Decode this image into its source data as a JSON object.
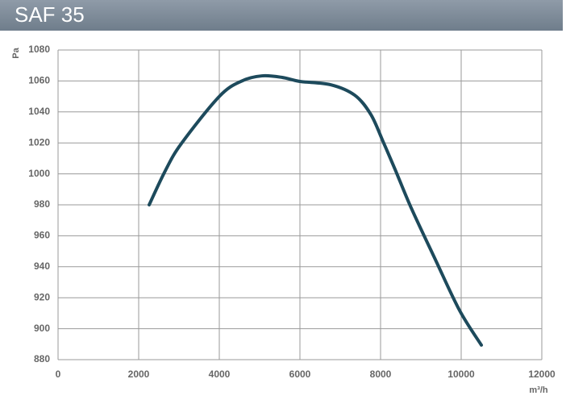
{
  "chart_data": {
    "type": "line",
    "title": "SAF 35",
    "y_label": "Pa",
    "x_label": "m³/h",
    "x": [
      2260,
      2660,
      3060,
      4000,
      4560,
      5060,
      5560,
      6000,
      6760,
      7360,
      7760,
      8060,
      8360,
      8760,
      9360,
      9960,
      10500
    ],
    "series": [
      {
        "color": "#1d4a5c",
        "values": [
          980,
          1002,
          1019.6,
          1050,
          1060,
          1063.3,
          1062.3,
          1059.7,
          1057.6,
          1050.8,
          1038.3,
          1021,
          1002.9,
          978,
          944.6,
          911.8,
          889.4
        ]
      }
    ],
    "xlim": [
      0,
      12000
    ],
    "xticks": [
      0,
      2000,
      4000,
      6000,
      8000,
      10000,
      12000
    ],
    "ylim": [
      880,
      1080
    ],
    "yticks": [
      880,
      900,
      920,
      940,
      960,
      980,
      1000,
      1020,
      1040,
      1060,
      1080
    ],
    "grid": true
  }
}
